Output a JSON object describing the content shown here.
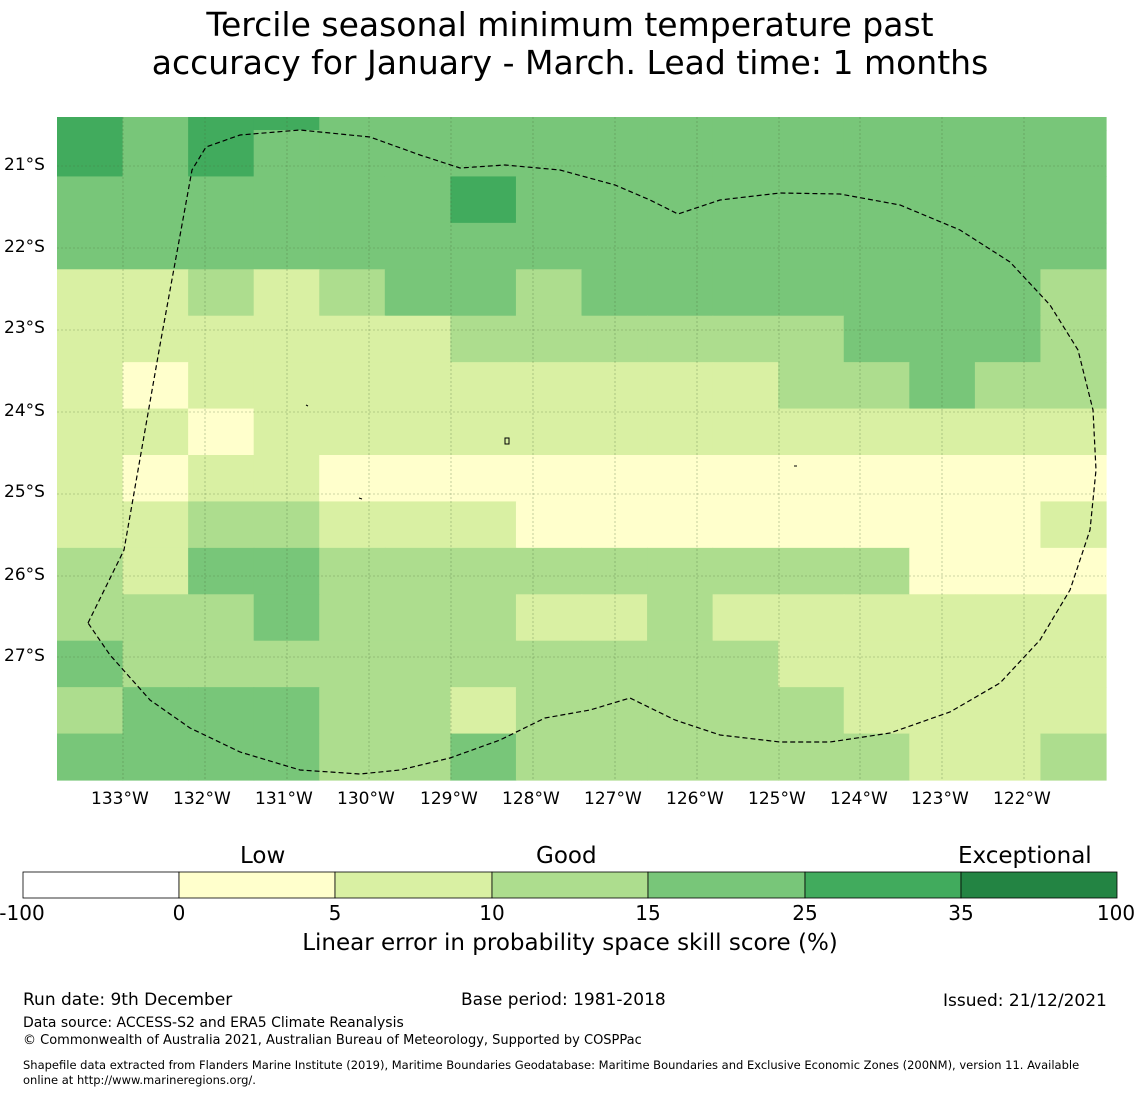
{
  "title": {
    "line1": "Tercile seasonal minimum temperature past",
    "line2": "accuracy for January - March. Lead time: 1 months"
  },
  "map": {
    "lat_labels": [
      "21°S",
      "22°S",
      "23°S",
      "24°S",
      "25°S",
      "26°S",
      "27°S"
    ],
    "lon_labels": [
      "133°W",
      "132°W",
      "131°W",
      "130°W",
      "129°W",
      "128°W",
      "127°W",
      "126°W",
      "125°W",
      "124°W",
      "123°W",
      "122°W"
    ],
    "grid_columns": 16,
    "grid_rows": 15,
    "category_colors": [
      "#ffffff",
      "#ffffcc",
      "#d9f0a3",
      "#addd8e",
      "#78c679",
      "#41ab5d",
      "#238443"
    ],
    "cells": [
      [
        5,
        4,
        5,
        5,
        4,
        4,
        4,
        4,
        4,
        4,
        4,
        4,
        4,
        4,
        4,
        4
      ],
      [
        5,
        4,
        5,
        4,
        4,
        4,
        4,
        4,
        4,
        4,
        4,
        4,
        4,
        4,
        4,
        4
      ],
      [
        4,
        4,
        4,
        4,
        4,
        4,
        5,
        4,
        4,
        4,
        4,
        4,
        4,
        4,
        4,
        4
      ],
      [
        4,
        4,
        4,
        4,
        4,
        4,
        4,
        4,
        4,
        4,
        4,
        4,
        4,
        4,
        4,
        4
      ],
      [
        2,
        2,
        3,
        2,
        3,
        4,
        4,
        3,
        4,
        4,
        4,
        4,
        4,
        4,
        4,
        3
      ],
      [
        2,
        2,
        2,
        2,
        2,
        2,
        3,
        3,
        3,
        3,
        3,
        3,
        4,
        4,
        4,
        3
      ],
      [
        2,
        1,
        2,
        2,
        2,
        2,
        2,
        2,
        2,
        2,
        2,
        3,
        3,
        4,
        3,
        3
      ],
      [
        2,
        2,
        1,
        2,
        2,
        2,
        2,
        2,
        2,
        2,
        2,
        2,
        2,
        2,
        2,
        2
      ],
      [
        2,
        1,
        2,
        2,
        1,
        1,
        1,
        1,
        1,
        1,
        1,
        1,
        1,
        1,
        1,
        1
      ],
      [
        2,
        2,
        3,
        3,
        2,
        2,
        2,
        1,
        1,
        1,
        1,
        1,
        1,
        1,
        1,
        2
      ],
      [
        3,
        2,
        4,
        4,
        3,
        3,
        3,
        3,
        3,
        3,
        3,
        3,
        3,
        1,
        1,
        1
      ],
      [
        3,
        3,
        3,
        4,
        3,
        3,
        3,
        2,
        2,
        3,
        2,
        2,
        2,
        2,
        2,
        2
      ],
      [
        4,
        3,
        3,
        3,
        3,
        3,
        3,
        3,
        3,
        3,
        3,
        2,
        2,
        2,
        2,
        2
      ],
      [
        3,
        4,
        4,
        4,
        3,
        3,
        2,
        3,
        3,
        3,
        3,
        3,
        2,
        2,
        2,
        2
      ],
      [
        4,
        4,
        4,
        4,
        3,
        3,
        4,
        3,
        3,
        3,
        3,
        3,
        3,
        2,
        2,
        3
      ]
    ]
  },
  "colorbar": {
    "category_labels": [
      "Low",
      "Good",
      "Exceptional"
    ],
    "ticks": [
      "-100",
      "0",
      "5",
      "10",
      "15",
      "25",
      "35",
      "100"
    ],
    "colors": [
      "#ffffff",
      "#ffffcc",
      "#d9f0a3",
      "#addd8e",
      "#78c679",
      "#41ab5d",
      "#238443"
    ],
    "title": "Linear error in probability space skill score (%)"
  },
  "footer": {
    "run_date": "Run date: 9th December",
    "base_period": "Base period: 1981-2018",
    "issued": "Issued: 21/12/2021",
    "data_source": "Data source: ACCESS-S2 and ERA5 Climate Reanalysis",
    "copyright": "© Commonwealth of Australia 2021, Australian Bureau of Meteorology, Supported by COSPPac",
    "shapefile_line1": "Shapefile data extracted from Flanders Marine Institute (2019), Maritime Boundaries Geodatabase: Maritime Boundaries and Exclusive Economic Zones (200NM), version 11. Available",
    "shapefile_line2": "online at http://www.marineregions.org/."
  }
}
